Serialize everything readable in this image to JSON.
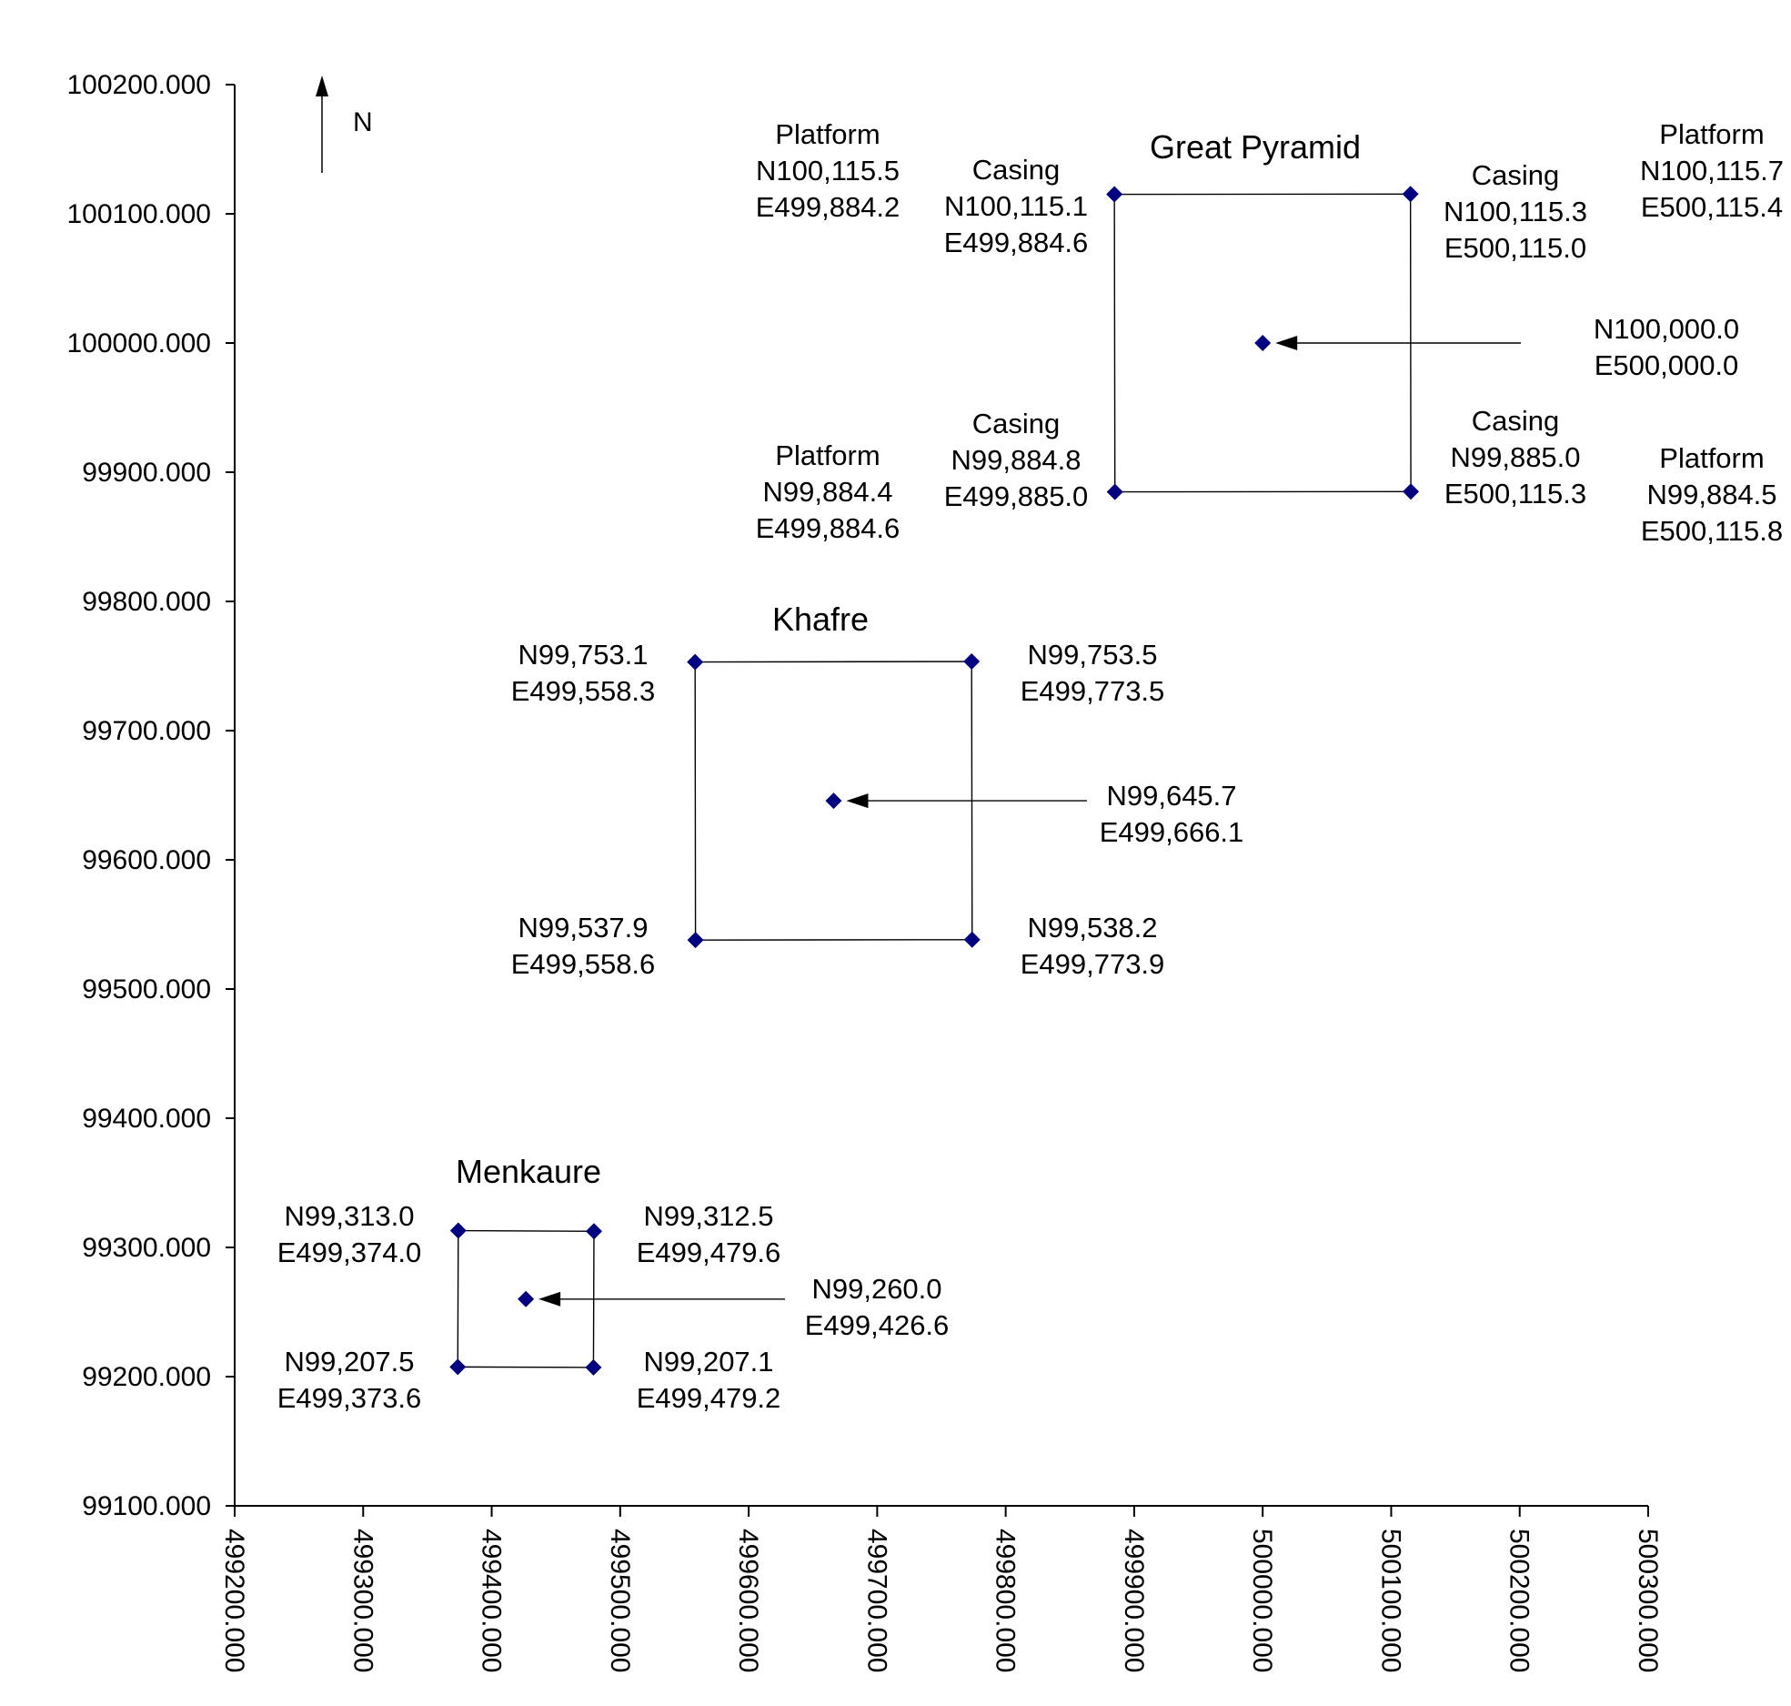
{
  "chart_data": {
    "type": "scatter",
    "xlim": [
      499200,
      500300
    ],
    "ylim": [
      99100,
      100200
    ],
    "x_ticks": [
      "499200.000",
      "499300.000",
      "499400.000",
      "499500.000",
      "499600.000",
      "499700.000",
      "499800.000",
      "499900.000",
      "500000.000",
      "500100.000",
      "500200.000",
      "500300.000"
    ],
    "y_ticks": [
      "100200.000",
      "100100.000",
      "100000.000",
      "99900.000",
      "99800.000",
      "99700.000",
      "99600.000",
      "99500.000",
      "99400.000",
      "99300.000",
      "99200.000",
      "99100.000"
    ],
    "grid": false,
    "marker_color": "#000080",
    "north_arrow": {
      "label": "N"
    },
    "pyramids": [
      {
        "name": "Great Pyramid",
        "corners": [
          {
            "x": 499884.6,
            "y": 100115.1,
            "lines": [
              "Casing",
              "N100,115.1",
              "E499,884.6"
            ]
          },
          {
            "x": 500115.0,
            "y": 100115.3,
            "lines": [
              "Casing",
              "N100,115.3",
              "E500,115.0"
            ]
          },
          {
            "x": 500115.3,
            "y": 99885.0,
            "lines": [
              "Casing",
              "N99,885.0",
              "E500,115.3"
            ]
          },
          {
            "x": 499885.0,
            "y": 99884.8,
            "lines": [
              "Casing",
              "N99,884.8",
              "E499,885.0"
            ]
          }
        ],
        "center": {
          "x": 500000.0,
          "y": 100000.0,
          "lines": [
            "N100,000.0",
            "E500,000.0"
          ]
        },
        "platform_labels": [
          {
            "lines": [
              "Platform",
              "N100,115.5",
              "E499,884.2"
            ]
          },
          {
            "lines": [
              "Platform",
              "N100,115.7",
              "E500,115.4"
            ]
          },
          {
            "lines": [
              "Platform",
              "N99,884.4",
              "E499,884.6"
            ]
          },
          {
            "lines": [
              "Platform",
              "N99,884.5",
              "E500,115.8"
            ]
          }
        ]
      },
      {
        "name": "Khafre",
        "corners": [
          {
            "x": 499558.3,
            "y": 99753.1,
            "lines": [
              "N99,753.1",
              "E499,558.3"
            ]
          },
          {
            "x": 499773.5,
            "y": 99753.5,
            "lines": [
              "N99,753.5",
              "E499,773.5"
            ]
          },
          {
            "x": 499773.9,
            "y": 99538.2,
            "lines": [
              "N99,538.2",
              "E499,773.9"
            ]
          },
          {
            "x": 499558.6,
            "y": 99537.9,
            "lines": [
              "N99,537.9",
              "E499,558.6"
            ]
          }
        ],
        "center": {
          "x": 499666.1,
          "y": 99645.7,
          "lines": [
            "N99,645.7",
            "E499,666.1"
          ]
        }
      },
      {
        "name": "Menkaure",
        "corners": [
          {
            "x": 499374.0,
            "y": 99313.0,
            "lines": [
              "N99,313.0",
              "E499,374.0"
            ]
          },
          {
            "x": 499479.6,
            "y": 99312.5,
            "lines": [
              "N99,312.5",
              "E499,479.6"
            ]
          },
          {
            "x": 499479.2,
            "y": 99207.1,
            "lines": [
              "N99,207.1",
              "E499,479.2"
            ]
          },
          {
            "x": 499373.6,
            "y": 99207.5,
            "lines": [
              "N99,207.5",
              "E499,373.6"
            ]
          }
        ],
        "center": {
          "x": 499426.6,
          "y": 99260.0,
          "lines": [
            "N99,260.0",
            "E499,426.6"
          ]
        }
      }
    ]
  }
}
